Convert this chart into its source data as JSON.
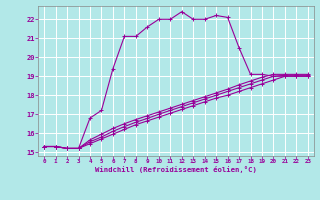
{
  "xlabel": "Windchill (Refroidissement éolien,°C)",
  "background_color": "#b2e8e8",
  "line_color": "#990099",
  "grid_color": "#ffffff",
  "spine_color": "#888888",
  "xlim": [
    -0.5,
    23.5
  ],
  "ylim": [
    14.8,
    22.7
  ],
  "yticks": [
    15,
    16,
    17,
    18,
    19,
    20,
    21,
    22
  ],
  "xticks": [
    0,
    1,
    2,
    3,
    4,
    5,
    6,
    7,
    8,
    9,
    10,
    11,
    12,
    13,
    14,
    15,
    16,
    17,
    18,
    19,
    20,
    21,
    22,
    23
  ],
  "series1_x": [
    0,
    1,
    2,
    3,
    4,
    5,
    6,
    7,
    8,
    9,
    10,
    11,
    12,
    13,
    14,
    15,
    16,
    17,
    18,
    19,
    20,
    21,
    22,
    23
  ],
  "series1_y": [
    15.3,
    15.3,
    15.2,
    15.2,
    16.8,
    17.2,
    19.4,
    21.1,
    21.1,
    21.6,
    22.0,
    22.0,
    22.4,
    22.0,
    22.0,
    22.2,
    22.1,
    20.5,
    19.1,
    19.1,
    19.0,
    19.0,
    19.0,
    19.0
  ],
  "series2_x": [
    0,
    1,
    2,
    3,
    4,
    5,
    6,
    7,
    8,
    9,
    10,
    11,
    12,
    13,
    14,
    15,
    16,
    17,
    18,
    19,
    20,
    21,
    22,
    23
  ],
  "series2_y": [
    15.3,
    15.3,
    15.2,
    15.2,
    15.45,
    15.7,
    15.95,
    16.2,
    16.45,
    16.65,
    16.85,
    17.05,
    17.25,
    17.45,
    17.65,
    17.85,
    18.0,
    18.2,
    18.4,
    18.6,
    18.8,
    19.0,
    19.0,
    19.0
  ],
  "series3_x": [
    0,
    1,
    2,
    3,
    4,
    5,
    6,
    7,
    8,
    9,
    10,
    11,
    12,
    13,
    14,
    15,
    16,
    17,
    18,
    19,
    20,
    21,
    22,
    23
  ],
  "series3_y": [
    15.3,
    15.3,
    15.2,
    15.2,
    15.55,
    15.8,
    16.1,
    16.35,
    16.58,
    16.78,
    17.0,
    17.2,
    17.4,
    17.6,
    17.8,
    18.0,
    18.2,
    18.4,
    18.6,
    18.8,
    19.0,
    19.05,
    19.05,
    19.05
  ],
  "series4_x": [
    0,
    1,
    2,
    3,
    4,
    5,
    6,
    7,
    8,
    9,
    10,
    11,
    12,
    13,
    14,
    15,
    16,
    17,
    18,
    19,
    20,
    21,
    22,
    23
  ],
  "series4_y": [
    15.3,
    15.3,
    15.2,
    15.2,
    15.65,
    15.95,
    16.25,
    16.5,
    16.72,
    16.92,
    17.12,
    17.32,
    17.52,
    17.72,
    17.92,
    18.12,
    18.32,
    18.55,
    18.75,
    18.95,
    19.1,
    19.1,
    19.1,
    19.1
  ]
}
